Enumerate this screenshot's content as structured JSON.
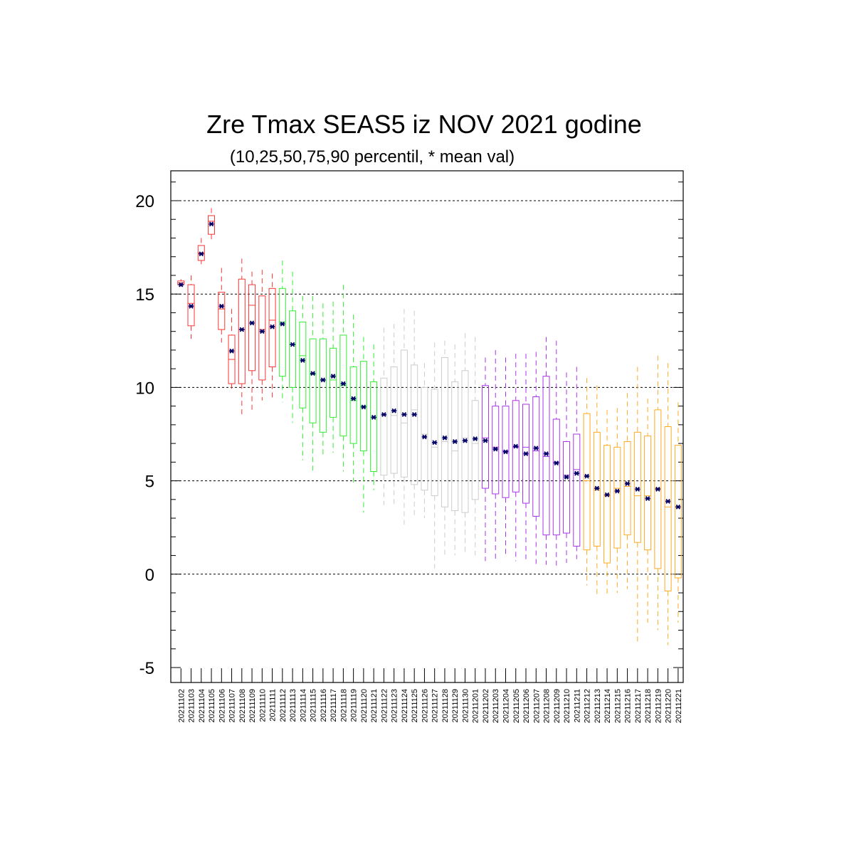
{
  "chart_data": {
    "type": "boxplot",
    "title": "Zre Tmax SEAS5 iz NOV 2021 godine",
    "subtitle": "(10,25,50,75,90 percentil, * mean val)",
    "xlabel": "",
    "ylabel": "",
    "ylim": [
      -5.8,
      21.6
    ],
    "yticks": [
      -5,
      0,
      5,
      10,
      15,
      20
    ],
    "grid_values": [
      0,
      5,
      10,
      15,
      20
    ],
    "grid": true,
    "mean_color": "#000066",
    "categories": [
      "20211102",
      "20211103",
      "20211104",
      "20211105",
      "20211106",
      "20211107",
      "20211108",
      "20211109",
      "20211110",
      "20211111",
      "20211112",
      "20211113",
      "20211114",
      "20211115",
      "20211116",
      "20211117",
      "20211118",
      "20211119",
      "20211120",
      "20211121",
      "20211122",
      "20211123",
      "20211124",
      "20211125",
      "20211126",
      "20211127",
      "20211128",
      "20211129",
      "20211130",
      "20211201",
      "20211202",
      "20211203",
      "20211204",
      "20211205",
      "20211206",
      "20211207",
      "20211208",
      "20211209",
      "20211210",
      "20211211",
      "20211212",
      "20211213",
      "20211214",
      "20211215",
      "20211216",
      "20211217",
      "20211218",
      "20211219",
      "20211220",
      "20211221"
    ],
    "colors": [
      "#ff3333",
      "#ff3333",
      "#ff3333",
      "#ff3333",
      "#ff3333",
      "#ff3333",
      "#ff3333",
      "#ff3333",
      "#ff3333",
      "#ff3333",
      "#33ee33",
      "#33ee33",
      "#33ee33",
      "#33ee33",
      "#33ee33",
      "#33ee33",
      "#33ee33",
      "#33ee33",
      "#33ee33",
      "#33ee33",
      "#cccccc",
      "#cccccc",
      "#cccccc",
      "#cccccc",
      "#cccccc",
      "#cccccc",
      "#cccccc",
      "#cccccc",
      "#cccccc",
      "#cccccc",
      "#aa33ee",
      "#aa33ee",
      "#aa33ee",
      "#aa33ee",
      "#aa33ee",
      "#aa33ee",
      "#aa33ee",
      "#aa33ee",
      "#aa33ee",
      "#aa33ee",
      "#ffaa22",
      "#ffaa22",
      "#ffaa22",
      "#ffaa22",
      "#ffaa22",
      "#ffaa22",
      "#ffaa22",
      "#ffaa22",
      "#ffaa22",
      "#ffaa22"
    ],
    "p10": [
      15.4,
      12.6,
      16.6,
      17.9,
      12.4,
      9.8,
      8.4,
      8.8,
      9.3,
      9.3,
      9.2,
      8.1,
      6.1,
      5.5,
      6.3,
      6.5,
      5.5,
      4.9,
      3.3,
      4.5,
      3.7,
      3.7,
      2.5,
      3.0,
      3.0,
      0.3,
      1.0,
      1.0,
      1.1,
      1.0,
      0.7,
      0.7,
      0.9,
      0.7,
      0.8,
      0.5,
      0.5,
      0.4,
      0.6,
      0.8,
      -0.6,
      -1.2,
      -1.2,
      -1.0,
      -0.8,
      -3.6,
      -2.6,
      -3.0,
      -3.8,
      -2.6
    ],
    "p25": [
      15.5,
      13.3,
      16.8,
      18.2,
      13.1,
      10.2,
      10.2,
      10.9,
      10.4,
      11.1,
      10.6,
      10.0,
      8.9,
      8.1,
      7.6,
      8.4,
      7.4,
      7.0,
      6.6,
      5.5,
      5.3,
      5.4,
      5.2,
      4.8,
      4.5,
      4.2,
      3.6,
      3.4,
      3.3,
      4.0,
      4.6,
      4.3,
      4.1,
      4.4,
      3.8,
      3.1,
      2.1,
      2.1,
      2.2,
      1.5,
      1.3,
      1.5,
      0.6,
      1.4,
      2.1,
      1.7,
      1.3,
      0.3,
      -0.9,
      -0.2
    ],
    "p50": [
      15.6,
      14.5,
      17.2,
      18.9,
      14.2,
      11.5,
      13.1,
      14.4,
      13.1,
      13.6,
      13.5,
      12.3,
      11.7,
      10.7,
      10.4,
      10.4,
      10.1,
      9.3,
      9.0,
      8.4,
      8.5,
      8.5,
      8.1,
      8.8,
      7.5,
      6.8,
      7.1,
      6.6,
      7.3,
      7.0,
      7.3,
      6.8,
      6.6,
      6.8,
      6.8,
      6.6,
      6.3,
      6.0,
      5.3,
      5.6,
      5.0,
      4.5,
      4.2,
      4.6,
      4.7,
      4.2,
      4.2,
      4.6,
      3.6,
      3.6
    ],
    "p75": [
      15.7,
      15.5,
      17.6,
      19.2,
      15.1,
      12.8,
      15.8,
      15.5,
      14.9,
      15.3,
      15.3,
      14.1,
      13.5,
      12.6,
      12.6,
      12.1,
      12.8,
      11.1,
      11.4,
      10.3,
      10.5,
      11.1,
      12.0,
      11.2,
      10.0,
      9.9,
      11.6,
      10.3,
      10.9,
      9.3,
      10.1,
      9.0,
      9.0,
      9.3,
      9.1,
      9.5,
      10.6,
      8.3,
      7.1,
      7.5,
      8.6,
      7.6,
      6.9,
      6.8,
      7.1,
      7.6,
      7.4,
      8.8,
      7.9,
      6.9
    ],
    "p90": [
      15.8,
      16.0,
      18.0,
      19.6,
      16.4,
      14.2,
      16.9,
      16.2,
      16.3,
      16.1,
      16.8,
      16.2,
      14.9,
      14.9,
      14.5,
      14.6,
      15.5,
      13.9,
      12.7,
      12.3,
      13.2,
      13.4,
      14.2,
      14.1,
      11.3,
      12.4,
      12.5,
      12.3,
      12.9,
      12.7,
      11.6,
      12.0,
      11.6,
      11.8,
      11.8,
      11.9,
      12.7,
      12.5,
      10.8,
      11.1,
      10.5,
      10.1,
      8.8,
      8.9,
      9.7,
      11.1,
      9.4,
      11.7,
      11.3,
      9.2
    ],
    "mean": [
      15.5,
      14.35,
      17.15,
      18.75,
      14.35,
      11.95,
      13.1,
      13.45,
      13.0,
      13.25,
      13.4,
      12.3,
      11.45,
      10.75,
      10.4,
      10.6,
      10.2,
      9.4,
      8.95,
      8.4,
      8.55,
      8.75,
      8.55,
      8.55,
      7.35,
      7.05,
      7.3,
      7.1,
      7.15,
      7.25,
      7.15,
      6.7,
      6.55,
      6.85,
      6.45,
      6.75,
      6.45,
      5.95,
      5.2,
      5.4,
      5.25,
      4.6,
      4.25,
      4.45,
      4.85,
      4.55,
      4.05,
      4.55,
      3.9,
      3.6
    ]
  }
}
